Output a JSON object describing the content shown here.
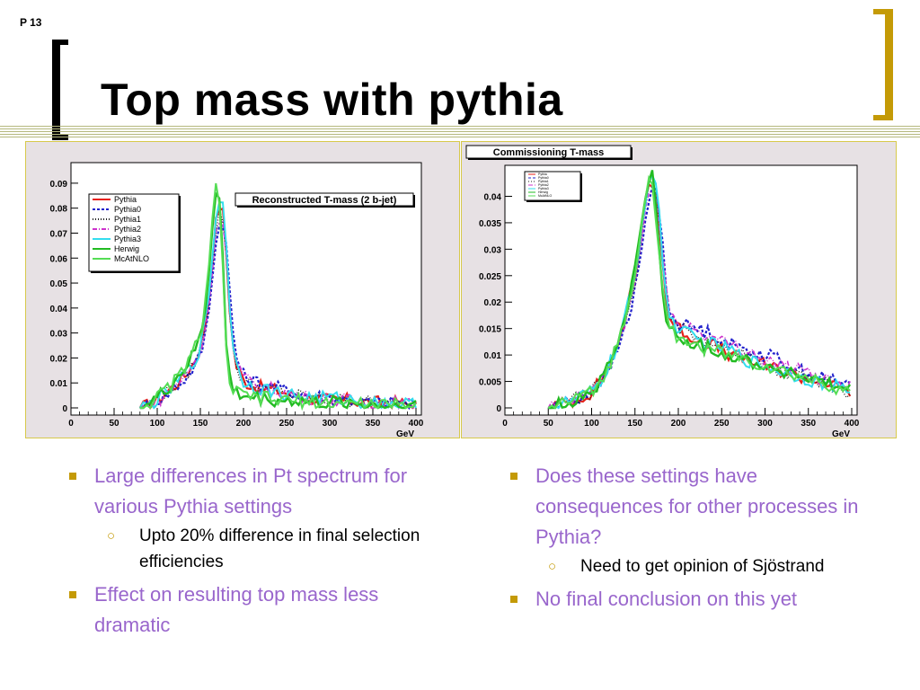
{
  "slide": {
    "number": "P 13",
    "title": "Top mass with pythia"
  },
  "colors": {
    "Pythia": "#e8201a",
    "Pythia0": "#2020cc",
    "Pythia1": "#222222",
    "Pythia2": "#cc33cc",
    "Pythia3": "#33ddee",
    "Herwig": "#22bb22",
    "McAtNLO": "#55dd55",
    "bullet_text": "#9966cc",
    "bullet_marker": "#c49a06"
  },
  "bullets": {
    "left": [
      {
        "text": "Large differences in Pt spectrum for various Pythia settings",
        "sub": [
          "Upto 20% difference in final selection efficiencies"
        ]
      },
      {
        "text": "Effect on resulting top mass less dramatic",
        "sub": []
      }
    ],
    "right": [
      {
        "text": "Does these settings have consequences for other processes in Pythia?",
        "sub": [
          "Need to get opinion of Sjöstrand"
        ]
      },
      {
        "text": "No final conclusion on this yet",
        "sub": []
      }
    ]
  },
  "chart_data": [
    {
      "type": "line",
      "title": "Reconstructed T-mass (2 b-jet)",
      "xlabel": "GeV",
      "ylabel": "",
      "xlim": [
        0,
        400
      ],
      "ylim": [
        0,
        0.095
      ],
      "xticks": [
        "0",
        "50",
        "100",
        "150",
        "200",
        "250",
        "300",
        "350",
        "400"
      ],
      "yticks": [
        "0",
        "0.01",
        "0.02",
        "0.03",
        "0.04",
        "0.05",
        "0.06",
        "0.07",
        "0.08",
        "0.09"
      ],
      "legend_position": "top-left",
      "x": [
        80,
        90,
        100,
        110,
        120,
        130,
        140,
        150,
        155,
        160,
        165,
        170,
        175,
        180,
        185,
        190,
        200,
        210,
        220,
        240,
        260,
        280,
        300,
        325,
        350,
        375,
        400
      ],
      "series": [
        {
          "name": "Pythia",
          "values": [
            0,
            0.001,
            0.003,
            0.006,
            0.009,
            0.012,
            0.017,
            0.024,
            0.032,
            0.045,
            0.065,
            0.08,
            0.082,
            0.062,
            0.035,
            0.018,
            0.011,
            0.009,
            0.008,
            0.007,
            0.005,
            0.004,
            0.003,
            0.003,
            0.002,
            0.002,
            0.001
          ]
        },
        {
          "name": "Pythia0",
          "values": [
            0,
            0.001,
            0.003,
            0.005,
            0.008,
            0.011,
            0.015,
            0.021,
            0.028,
            0.04,
            0.058,
            0.07,
            0.078,
            0.065,
            0.042,
            0.022,
            0.013,
            0.011,
            0.01,
            0.008,
            0.006,
            0.005,
            0.004,
            0.003,
            0.002,
            0.002,
            0.001
          ]
        },
        {
          "name": "Pythia1",
          "values": [
            0,
            0.001,
            0.004,
            0.006,
            0.009,
            0.012,
            0.016,
            0.023,
            0.031,
            0.044,
            0.062,
            0.077,
            0.08,
            0.06,
            0.034,
            0.017,
            0.011,
            0.009,
            0.008,
            0.006,
            0.005,
            0.004,
            0.003,
            0.003,
            0.002,
            0.001,
            0.001
          ]
        },
        {
          "name": "Pythia2",
          "values": [
            0,
            0.001,
            0.003,
            0.005,
            0.009,
            0.012,
            0.016,
            0.022,
            0.03,
            0.042,
            0.06,
            0.075,
            0.079,
            0.063,
            0.037,
            0.019,
            0.012,
            0.01,
            0.008,
            0.007,
            0.005,
            0.004,
            0.003,
            0.003,
            0.002,
            0.002,
            0.001
          ]
        },
        {
          "name": "Pythia3",
          "values": [
            0,
            0.001,
            0.003,
            0.006,
            0.009,
            0.013,
            0.017,
            0.024,
            0.032,
            0.046,
            0.066,
            0.082,
            0.086,
            0.066,
            0.036,
            0.018,
            0.011,
            0.009,
            0.008,
            0.006,
            0.005,
            0.004,
            0.004,
            0.003,
            0.002,
            0.002,
            0.001
          ]
        },
        {
          "name": "Herwig",
          "values": [
            0,
            0.002,
            0.004,
            0.007,
            0.011,
            0.015,
            0.02,
            0.028,
            0.038,
            0.055,
            0.078,
            0.094,
            0.068,
            0.025,
            0.01,
            0.006,
            0.005,
            0.004,
            0.004,
            0.003,
            0.003,
            0.002,
            0.002,
            0.002,
            0.001,
            0.001,
            0.001
          ]
        },
        {
          "name": "McAtNLO",
          "values": [
            0,
            0.002,
            0.004,
            0.007,
            0.011,
            0.015,
            0.021,
            0.029,
            0.04,
            0.058,
            0.082,
            0.092,
            0.062,
            0.022,
            0.009,
            0.006,
            0.005,
            0.004,
            0.004,
            0.003,
            0.003,
            0.002,
            0.002,
            0.002,
            0.001,
            0.001,
            0.001
          ]
        }
      ]
    },
    {
      "type": "line",
      "title": "Commissioning T-mass",
      "xlabel": "GeV",
      "ylabel": "",
      "xlim": [
        0,
        400
      ],
      "ylim": [
        0,
        0.0445
      ],
      "xticks": [
        "0",
        "50",
        "100",
        "150",
        "200",
        "250",
        "300",
        "350",
        "400"
      ],
      "yticks": [
        "0",
        "0.005",
        "0.01",
        "0.015",
        "0.02",
        "0.025",
        "0.03",
        "0.035",
        "0.04"
      ],
      "legend_position": "top-left",
      "x": [
        50,
        60,
        80,
        100,
        110,
        120,
        130,
        140,
        150,
        160,
        165,
        170,
        175,
        180,
        185,
        190,
        200,
        220,
        240,
        260,
        280,
        300,
        320,
        340,
        360,
        380,
        400
      ],
      "series": [
        {
          "name": "Pythia",
          "values": [
            0,
            0.0005,
            0.0015,
            0.003,
            0.005,
            0.008,
            0.012,
            0.018,
            0.025,
            0.036,
            0.042,
            0.043,
            0.04,
            0.031,
            0.022,
            0.017,
            0.015,
            0.013,
            0.012,
            0.01,
            0.009,
            0.008,
            0.007,
            0.006,
            0.005,
            0.004,
            0.003
          ]
        },
        {
          "name": "Pythia0",
          "values": [
            0,
            0.0005,
            0.0015,
            0.003,
            0.005,
            0.007,
            0.011,
            0.016,
            0.022,
            0.032,
            0.039,
            0.042,
            0.041,
            0.034,
            0.025,
            0.018,
            0.016,
            0.015,
            0.014,
            0.012,
            0.011,
            0.01,
            0.009,
            0.007,
            0.006,
            0.005,
            0.004
          ]
        },
        {
          "name": "Pythia1",
          "values": [
            0,
            0.0005,
            0.0015,
            0.003,
            0.005,
            0.008,
            0.012,
            0.017,
            0.024,
            0.035,
            0.041,
            0.043,
            0.041,
            0.032,
            0.023,
            0.017,
            0.015,
            0.014,
            0.012,
            0.011,
            0.01,
            0.008,
            0.007,
            0.006,
            0.005,
            0.004,
            0.003
          ]
        },
        {
          "name": "Pythia2",
          "values": [
            0,
            0.0005,
            0.0015,
            0.003,
            0.005,
            0.008,
            0.012,
            0.017,
            0.024,
            0.034,
            0.04,
            0.042,
            0.04,
            0.032,
            0.024,
            0.018,
            0.016,
            0.015,
            0.013,
            0.012,
            0.011,
            0.009,
            0.008,
            0.007,
            0.006,
            0.005,
            0.004
          ]
        },
        {
          "name": "Pythia3",
          "values": [
            0,
            0.0005,
            0.0015,
            0.003,
            0.005,
            0.008,
            0.012,
            0.018,
            0.025,
            0.037,
            0.043,
            0.044,
            0.042,
            0.032,
            0.023,
            0.017,
            0.015,
            0.013,
            0.012,
            0.011,
            0.009,
            0.008,
            0.007,
            0.006,
            0.005,
            0.004,
            0.003
          ]
        },
        {
          "name": "Herwig",
          "values": [
            0,
            0.0005,
            0.0015,
            0.003,
            0.005,
            0.008,
            0.012,
            0.018,
            0.026,
            0.038,
            0.044,
            0.044,
            0.036,
            0.024,
            0.018,
            0.015,
            0.013,
            0.012,
            0.011,
            0.01,
            0.009,
            0.008,
            0.007,
            0.006,
            0.005,
            0.004,
            0.003
          ]
        },
        {
          "name": "McAtNLO",
          "values": [
            0,
            0.0005,
            0.0015,
            0.003,
            0.005,
            0.008,
            0.012,
            0.018,
            0.026,
            0.038,
            0.043,
            0.043,
            0.035,
            0.024,
            0.018,
            0.015,
            0.013,
            0.012,
            0.011,
            0.01,
            0.009,
            0.008,
            0.007,
            0.006,
            0.005,
            0.004,
            0.003
          ]
        }
      ]
    }
  ]
}
